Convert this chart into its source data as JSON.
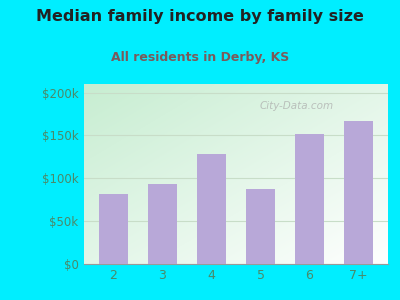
{
  "title": "Median family income by family size",
  "subtitle": "All residents in Derby, KS",
  "categories": [
    "2",
    "3",
    "4",
    "5",
    "6",
    "7+"
  ],
  "values": [
    82000,
    93000,
    128000,
    87000,
    152000,
    167000
  ],
  "bar_color": "#b8a8d8",
  "title_color": "#222222",
  "subtitle_color": "#7a5a5a",
  "tick_color": "#4a8a6a",
  "background_outer": "#00eeff",
  "ylim": [
    0,
    210000
  ],
  "yticks": [
    0,
    50000,
    100000,
    150000,
    200000
  ],
  "ytick_labels": [
    "$0",
    "$50k",
    "$100k",
    "$150k",
    "$200k"
  ],
  "watermark": "City-Data.com",
  "grid_color": "#c8ddc8",
  "title_fontsize": 11.5,
  "subtitle_fontsize": 9
}
